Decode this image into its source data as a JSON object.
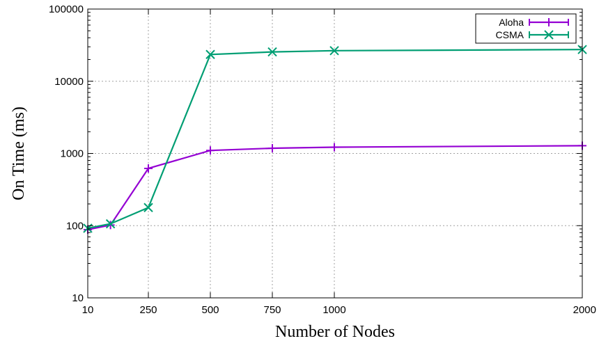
{
  "chart_data": {
    "type": "line",
    "xlabel": "Number of Nodes",
    "ylabel": "On Time (ms)",
    "y_scale": "log",
    "ylim": [
      10,
      100000
    ],
    "xlim": [
      10,
      2000
    ],
    "x_ticks": [
      10,
      250,
      500,
      750,
      1000,
      2000
    ],
    "y_ticks": [
      10,
      100,
      1000,
      10000,
      100000
    ],
    "grid": true,
    "legend_position": "top-right",
    "x": [
      10,
      100,
      250,
      500,
      750,
      1000,
      2000
    ],
    "series": [
      {
        "name": "Aloha",
        "color": "#9400d3",
        "marker": "plus",
        "values": [
          88,
          102,
          620,
          1100,
          1180,
          1220,
          1280
        ]
      },
      {
        "name": "CSMA",
        "color": "#009e73",
        "marker": "cross",
        "values": [
          92,
          106,
          178,
          23500,
          25500,
          26500,
          27500
        ]
      }
    ]
  }
}
